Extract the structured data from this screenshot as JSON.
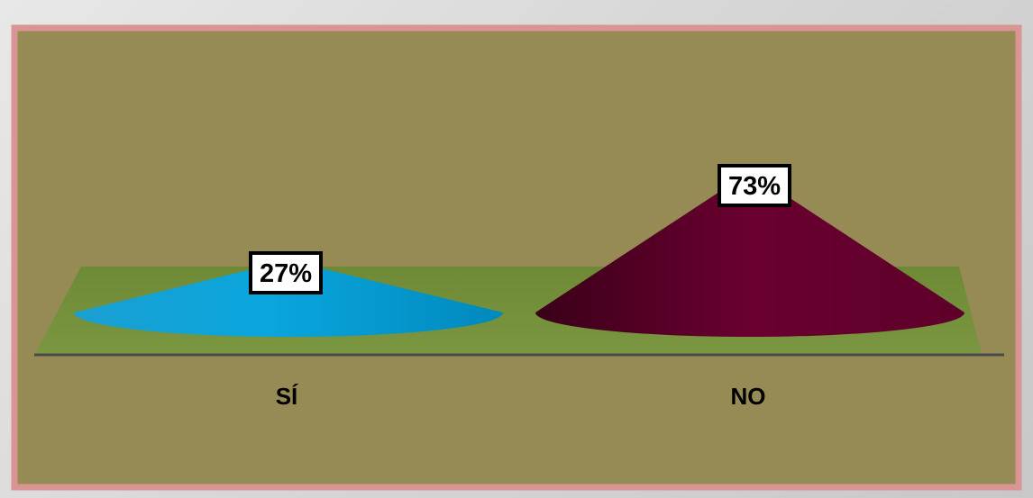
{
  "chart_data": {
    "type": "bar",
    "categories": [
      "SÍ",
      "NO"
    ],
    "values": [
      27,
      73
    ],
    "value_labels": [
      "27%",
      "73%"
    ],
    "title": "",
    "xlabel": "",
    "ylabel": "",
    "ylim": [
      0,
      100
    ],
    "grid": false,
    "legend": "none",
    "colors": {
      "background": "#968B55",
      "border": "#D99594",
      "floor": "#76923C",
      "baseline": "#4A4A4A",
      "series": [
        "#0099CC",
        "#66002E"
      ]
    }
  }
}
